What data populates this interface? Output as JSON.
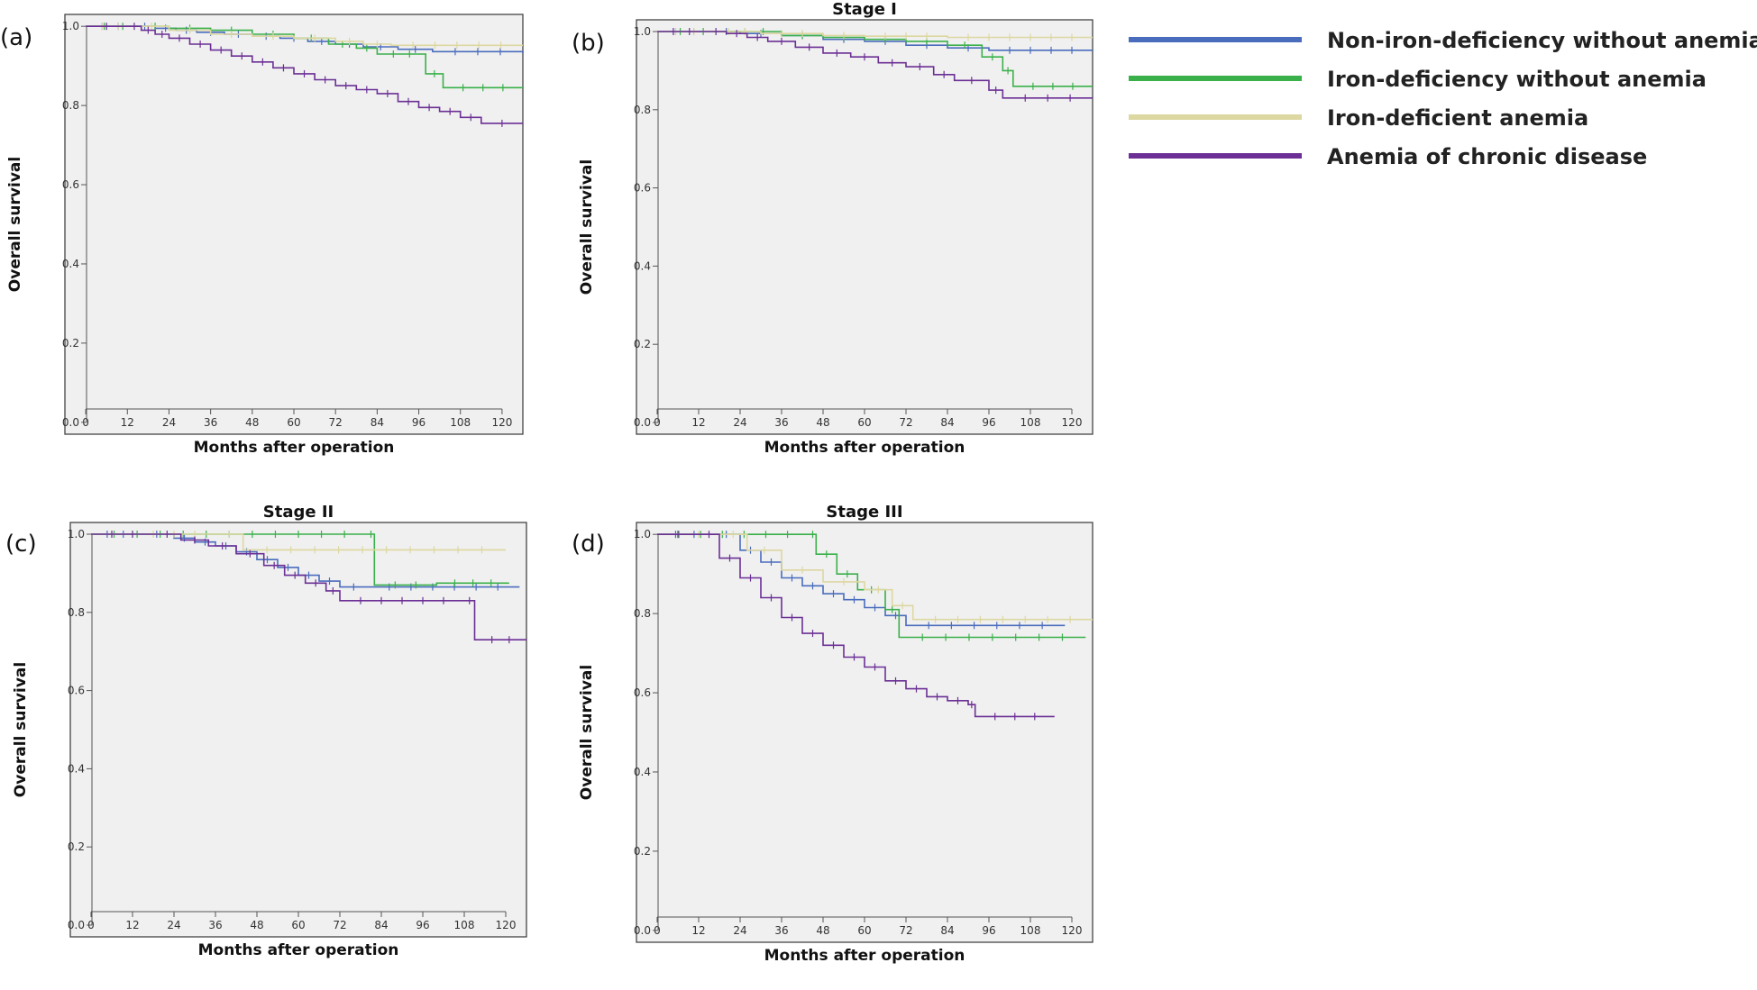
{
  "legend": [
    {
      "name": "Non-iron-deficiency without anemia",
      "color": "#4a6cbd"
    },
    {
      "name": "Iron-deficiency without anemia",
      "color": "#3ab04a"
    },
    {
      "name": "Iron-deficient anemia",
      "color": "#ddd7a1"
    },
    {
      "name": "Anemia of chronic disease",
      "color": "#6b2f95"
    }
  ],
  "chart_data": [
    {
      "type": "line",
      "panel_label": "(a)",
      "title": "",
      "xlabel": "Months after operation",
      "ylabel": "Overall survival",
      "xlim": [
        -6,
        126
      ],
      "ylim": [
        -0.03,
        1.03
      ],
      "xticks": [
        0,
        12,
        24,
        36,
        48,
        60,
        72,
        84,
        96,
        108,
        120
      ],
      "yticks": [
        0.0,
        0.2,
        0.4,
        0.6,
        0.8,
        1.0
      ],
      "series": [
        {
          "name": "Non-iron-deficiency without anemia",
          "x": [
            0,
            14,
            20,
            26,
            32,
            40,
            48,
            56,
            64,
            72,
            80,
            90,
            100,
            126
          ],
          "y": [
            1.0,
            1.0,
            0.995,
            0.99,
            0.985,
            0.98,
            0.975,
            0.97,
            0.962,
            0.955,
            0.948,
            0.942,
            0.936,
            0.932
          ]
        },
        {
          "name": "Iron-deficiency without anemia",
          "x": [
            0,
            16,
            24,
            36,
            48,
            60,
            70,
            78,
            84,
            98,
            103,
            126
          ],
          "y": [
            1.0,
            1.0,
            0.995,
            0.99,
            0.98,
            0.97,
            0.955,
            0.945,
            0.93,
            0.88,
            0.845,
            0.845
          ]
        },
        {
          "name": "Iron-deficient anemia",
          "x": [
            0,
            14,
            24,
            36,
            48,
            60,
            72,
            80,
            88,
            126
          ],
          "y": [
            1.0,
            1.0,
            0.99,
            0.98,
            0.975,
            0.97,
            0.962,
            0.955,
            0.952,
            0.952
          ]
        },
        {
          "name": "Anemia of chronic disease",
          "x": [
            0,
            12,
            16,
            20,
            24,
            30,
            36,
            42,
            48,
            54,
            60,
            66,
            72,
            78,
            84,
            90,
            96,
            102,
            108,
            114,
            126
          ],
          "y": [
            1.0,
            1.0,
            0.99,
            0.98,
            0.97,
            0.955,
            0.94,
            0.925,
            0.91,
            0.895,
            0.88,
            0.865,
            0.85,
            0.84,
            0.83,
            0.81,
            0.795,
            0.785,
            0.77,
            0.755,
            0.755
          ]
        }
      ]
    },
    {
      "type": "line",
      "panel_label": "(b)",
      "title": "Stage I",
      "xlabel": "Months after operation",
      "ylabel": "Overall survival",
      "xlim": [
        -6,
        126
      ],
      "ylim": [
        -0.03,
        1.03
      ],
      "xticks": [
        0,
        12,
        24,
        36,
        48,
        60,
        72,
        84,
        96,
        108,
        120
      ],
      "yticks": [
        0.0,
        0.2,
        0.4,
        0.6,
        0.8,
        1.0
      ],
      "series": [
        {
          "name": "Non-iron-deficiency without anemia",
          "x": [
            0,
            16,
            24,
            36,
            48,
            60,
            72,
            84,
            96,
            126
          ],
          "y": [
            1.0,
            1.0,
            0.995,
            0.99,
            0.98,
            0.975,
            0.965,
            0.958,
            0.952,
            0.95
          ]
        },
        {
          "name": "Iron-deficiency without anemia",
          "x": [
            0,
            20,
            36,
            48,
            60,
            72,
            84,
            94,
            100,
            103,
            126
          ],
          "y": [
            1.0,
            1.0,
            0.99,
            0.985,
            0.98,
            0.975,
            0.965,
            0.935,
            0.9,
            0.86,
            0.86
          ]
        },
        {
          "name": "Iron-deficient anemia",
          "x": [
            0,
            16,
            30,
            48,
            60,
            84,
            126
          ],
          "y": [
            1.0,
            1.0,
            0.995,
            0.99,
            0.988,
            0.985,
            0.985
          ]
        },
        {
          "name": "Anemia of chronic disease",
          "x": [
            0,
            14,
            20,
            26,
            32,
            40,
            48,
            56,
            64,
            72,
            80,
            86,
            96,
            100,
            126
          ],
          "y": [
            1.0,
            1.0,
            0.995,
            0.985,
            0.975,
            0.96,
            0.945,
            0.935,
            0.92,
            0.91,
            0.89,
            0.875,
            0.85,
            0.83,
            0.83
          ]
        }
      ]
    },
    {
      "type": "line",
      "panel_label": "(c)",
      "title": "Stage II",
      "xlabel": "Months after operation",
      "ylabel": "Overall survival",
      "xlim": [
        -6,
        126
      ],
      "ylim": [
        -0.03,
        1.03
      ],
      "xticks": [
        0,
        12,
        24,
        36,
        48,
        60,
        72,
        84,
        96,
        108,
        120
      ],
      "yticks": [
        0.0,
        0.2,
        0.4,
        0.6,
        0.8,
        1.0
      ],
      "series": [
        {
          "name": "Non-iron-deficiency without anemia",
          "x": [
            0,
            14,
            24,
            30,
            36,
            42,
            48,
            54,
            60,
            66,
            72,
            80,
            124
          ],
          "y": [
            1.0,
            1.0,
            0.99,
            0.98,
            0.97,
            0.955,
            0.935,
            0.915,
            0.895,
            0.88,
            0.865,
            0.865,
            0.865
          ]
        },
        {
          "name": "Iron-deficiency without anemia",
          "x": [
            0,
            80,
            82,
            100,
            121
          ],
          "y": [
            1.0,
            1.0,
            0.87,
            0.875,
            0.875
          ]
        },
        {
          "name": "Iron-deficient anemia",
          "x": [
            0,
            36,
            44,
            120
          ],
          "y": [
            1.0,
            1.0,
            0.96,
            0.96
          ]
        },
        {
          "name": "Anemia of chronic disease",
          "x": [
            0,
            18,
            26,
            34,
            42,
            50,
            56,
            62,
            68,
            72,
            108,
            111,
            126
          ],
          "y": [
            1.0,
            1.0,
            0.985,
            0.97,
            0.95,
            0.92,
            0.895,
            0.875,
            0.855,
            0.83,
            0.83,
            0.73,
            0.73
          ]
        }
      ]
    },
    {
      "type": "line",
      "panel_label": "(d)",
      "title": "Stage III",
      "xlabel": "Months after operation",
      "ylabel": "Overall survival",
      "xlim": [
        -6,
        126
      ],
      "ylim": [
        -0.03,
        1.03
      ],
      "xticks": [
        0,
        12,
        24,
        36,
        48,
        60,
        72,
        84,
        96,
        108,
        120
      ],
      "yticks": [
        0.0,
        0.2,
        0.4,
        0.6,
        0.8,
        1.0
      ],
      "series": [
        {
          "name": "Non-iron-deficiency without anemia",
          "x": [
            0,
            16,
            24,
            30,
            36,
            42,
            48,
            54,
            60,
            66,
            72,
            118
          ],
          "y": [
            1.0,
            1.0,
            0.96,
            0.93,
            0.89,
            0.87,
            0.85,
            0.835,
            0.815,
            0.795,
            0.77,
            0.77
          ]
        },
        {
          "name": "Iron-deficiency without anemia",
          "x": [
            0,
            44,
            46,
            52,
            58,
            66,
            70,
            124
          ],
          "y": [
            1.0,
            1.0,
            0.95,
            0.9,
            0.86,
            0.81,
            0.74,
            0.74
          ]
        },
        {
          "name": "Iron-deficient anemia",
          "x": [
            0,
            18,
            26,
            36,
            48,
            60,
            68,
            74,
            126
          ],
          "y": [
            1.0,
            1.0,
            0.96,
            0.91,
            0.88,
            0.86,
            0.82,
            0.785,
            0.785
          ]
        },
        {
          "name": "Anemia of chronic disease",
          "x": [
            0,
            12,
            18,
            24,
            30,
            36,
            42,
            48,
            54,
            60,
            66,
            72,
            78,
            84,
            90,
            92,
            115
          ],
          "y": [
            1.0,
            1.0,
            0.94,
            0.89,
            0.84,
            0.79,
            0.75,
            0.72,
            0.69,
            0.665,
            0.63,
            0.61,
            0.59,
            0.58,
            0.57,
            0.54,
            0.54
          ]
        }
      ]
    }
  ]
}
